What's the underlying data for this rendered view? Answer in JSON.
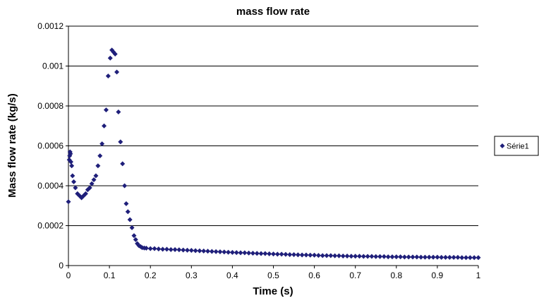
{
  "chart_data": {
    "type": "scatter",
    "title": "mass flow rate",
    "xlabel": "Time (s)",
    "ylabel": "Mass flow rate (kg/s)",
    "xlim": [
      0,
      1
    ],
    "ylim": [
      0,
      0.0012
    ],
    "x_ticks": [
      "0",
      "0.1",
      "0.2",
      "0.3",
      "0.4",
      "0.5",
      "0.6",
      "0.7",
      "0.8",
      "0.9",
      "1"
    ],
    "y_ticks": [
      "0",
      "0.0002",
      "0.0004",
      "0.0006",
      "0.0008",
      "0.001",
      "0.0012"
    ],
    "grid": "horizontal",
    "legend_position": "right",
    "color": "#1f1f7a",
    "series": [
      {
        "name": "Série1",
        "marker": "diamond",
        "points": [
          [
            0.0,
            0.00032
          ],
          [
            0.002,
            0.00053
          ],
          [
            0.003,
            0.00055
          ],
          [
            0.004,
            0.00057
          ],
          [
            0.005,
            0.00056
          ],
          [
            0.006,
            0.00052
          ],
          [
            0.008,
            0.0005
          ],
          [
            0.01,
            0.00045
          ],
          [
            0.013,
            0.00042
          ],
          [
            0.017,
            0.00039
          ],
          [
            0.022,
            0.00036
          ],
          [
            0.027,
            0.00035
          ],
          [
            0.032,
            0.00034
          ],
          [
            0.037,
            0.00035
          ],
          [
            0.042,
            0.00036
          ],
          [
            0.047,
            0.00038
          ],
          [
            0.052,
            0.00039
          ],
          [
            0.057,
            0.00041
          ],
          [
            0.062,
            0.00043
          ],
          [
            0.067,
            0.00045
          ],
          [
            0.072,
            0.0005
          ],
          [
            0.077,
            0.00055
          ],
          [
            0.082,
            0.00061
          ],
          [
            0.087,
            0.0007
          ],
          [
            0.092,
            0.00078
          ],
          [
            0.097,
            0.00095
          ],
          [
            0.102,
            0.00104
          ],
          [
            0.106,
            0.00108
          ],
          [
            0.11,
            0.00107
          ],
          [
            0.114,
            0.00106
          ],
          [
            0.118,
            0.00097
          ],
          [
            0.122,
            0.00077
          ],
          [
            0.127,
            0.00062
          ],
          [
            0.132,
            0.00051
          ],
          [
            0.137,
            0.0004
          ],
          [
            0.141,
            0.00031
          ],
          [
            0.145,
            0.00027
          ],
          [
            0.15,
            0.00023
          ],
          [
            0.155,
            0.00019
          ],
          [
            0.16,
            0.00015
          ],
          [
            0.164,
            0.00013
          ],
          [
            0.168,
            0.00011
          ],
          [
            0.172,
            0.0001
          ],
          [
            0.176,
            9.5e-05
          ],
          [
            0.18,
            9e-05
          ],
          [
            0.185,
            8.8e-05
          ],
          [
            0.19,
            8.7e-05
          ],
          [
            0.2,
            8.5e-05
          ],
          [
            0.21,
            8.5e-05
          ],
          [
            0.22,
            8.3e-05
          ],
          [
            0.23,
            8.2e-05
          ],
          [
            0.24,
            8.2e-05
          ],
          [
            0.25,
            8e-05
          ],
          [
            0.26,
            8e-05
          ],
          [
            0.27,
            7.9e-05
          ],
          [
            0.28,
            7.8e-05
          ],
          [
            0.29,
            7.7e-05
          ],
          [
            0.3,
            7.6e-05
          ],
          [
            0.31,
            7.5e-05
          ],
          [
            0.32,
            7.4e-05
          ],
          [
            0.33,
            7.3e-05
          ],
          [
            0.34,
            7.2e-05
          ],
          [
            0.35,
            7.1e-05
          ],
          [
            0.36,
            7e-05
          ],
          [
            0.37,
            6.9e-05
          ],
          [
            0.38,
            6.8e-05
          ],
          [
            0.39,
            6.7e-05
          ],
          [
            0.4,
            6.6e-05
          ],
          [
            0.41,
            6.5e-05
          ],
          [
            0.42,
            6.4e-05
          ],
          [
            0.43,
            6.4e-05
          ],
          [
            0.44,
            6.3e-05
          ],
          [
            0.45,
            6.2e-05
          ],
          [
            0.46,
            6.1e-05
          ],
          [
            0.47,
            6e-05
          ],
          [
            0.48,
            6e-05
          ],
          [
            0.49,
            5.9e-05
          ],
          [
            0.5,
            5.8e-05
          ],
          [
            0.51,
            5.7e-05
          ],
          [
            0.52,
            5.7e-05
          ],
          [
            0.53,
            5.6e-05
          ],
          [
            0.54,
            5.5e-05
          ],
          [
            0.55,
            5.5e-05
          ],
          [
            0.56,
            5.4e-05
          ],
          [
            0.57,
            5.3e-05
          ],
          [
            0.58,
            5.3e-05
          ],
          [
            0.59,
            5.2e-05
          ],
          [
            0.6,
            5.2e-05
          ],
          [
            0.61,
            5.1e-05
          ],
          [
            0.62,
            5e-05
          ],
          [
            0.63,
            5e-05
          ],
          [
            0.64,
            5e-05
          ],
          [
            0.65,
            4.9e-05
          ],
          [
            0.66,
            4.9e-05
          ],
          [
            0.67,
            4.8e-05
          ],
          [
            0.68,
            4.8e-05
          ],
          [
            0.69,
            4.7e-05
          ],
          [
            0.7,
            4.7e-05
          ],
          [
            0.71,
            4.7e-05
          ],
          [
            0.72,
            4.6e-05
          ],
          [
            0.73,
            4.6e-05
          ],
          [
            0.74,
            4.6e-05
          ],
          [
            0.75,
            4.5e-05
          ],
          [
            0.76,
            4.5e-05
          ],
          [
            0.77,
            4.5e-05
          ],
          [
            0.78,
            4.4e-05
          ],
          [
            0.79,
            4.4e-05
          ],
          [
            0.8,
            4.4e-05
          ],
          [
            0.81,
            4.4e-05
          ],
          [
            0.82,
            4.3e-05
          ],
          [
            0.83,
            4.3e-05
          ],
          [
            0.84,
            4.3e-05
          ],
          [
            0.85,
            4.3e-05
          ],
          [
            0.86,
            4.2e-05
          ],
          [
            0.87,
            4.2e-05
          ],
          [
            0.88,
            4.2e-05
          ],
          [
            0.89,
            4.2e-05
          ],
          [
            0.9,
            4.2e-05
          ],
          [
            0.91,
            4.1e-05
          ],
          [
            0.92,
            4.1e-05
          ],
          [
            0.93,
            4.1e-05
          ],
          [
            0.94,
            4.1e-05
          ],
          [
            0.95,
            4.1e-05
          ],
          [
            0.96,
            4e-05
          ],
          [
            0.97,
            4e-05
          ],
          [
            0.98,
            4e-05
          ],
          [
            0.99,
            4e-05
          ],
          [
            1.0,
            4e-05
          ]
        ]
      }
    ]
  }
}
